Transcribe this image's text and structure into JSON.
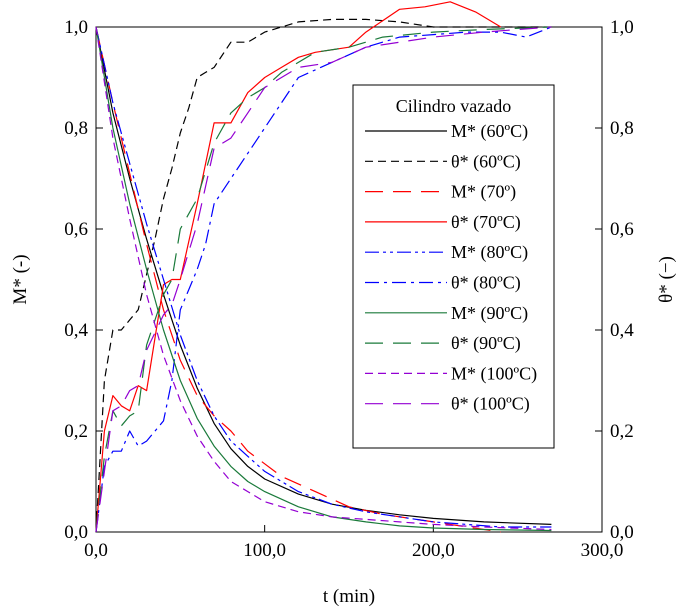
{
  "chart_data": {
    "type": "line",
    "xlabel": "t (min)",
    "ylabel": "M* (-)",
    "y2label": "θ* (−)",
    "xlim": [
      0,
      300
    ],
    "ylim": [
      0,
      1
    ],
    "xticks": [
      0,
      100,
      200,
      300
    ],
    "xtick_labels": [
      "0,0",
      "100,0",
      "200,0",
      "300,0"
    ],
    "yticks": [
      0,
      0.2,
      0.4,
      0.6,
      0.8,
      1.0
    ],
    "ytick_labels": [
      "0,0",
      "0,2",
      "0,4",
      "0,6",
      "0,8",
      "1,0"
    ],
    "grid": false,
    "legend": {
      "title": "Cilindro vazado",
      "position": "center-right"
    },
    "series": [
      {
        "name": "M* (60ºC)",
        "color": "#000000",
        "dash": "solid",
        "x": [
          0,
          10,
          20,
          30,
          40,
          50,
          60,
          70,
          80,
          90,
          100,
          120,
          140,
          160,
          180,
          200,
          230,
          270
        ],
        "y": [
          1.0,
          0.83,
          0.7,
          0.58,
          0.47,
          0.37,
          0.285,
          0.215,
          0.165,
          0.13,
          0.105,
          0.075,
          0.055,
          0.043,
          0.034,
          0.027,
          0.02,
          0.015
        ]
      },
      {
        "name": "θ* (60ºC)",
        "color": "#000000",
        "dash": "dash",
        "x": [
          0,
          5,
          10,
          15,
          20,
          25,
          30,
          35,
          40,
          45,
          50,
          55,
          60,
          65,
          70,
          80,
          90,
          100,
          110,
          120,
          140,
          160,
          180,
          200,
          220,
          240,
          270
        ],
        "y": [
          0.0,
          0.3,
          0.4,
          0.4,
          0.42,
          0.44,
          0.51,
          0.58,
          0.66,
          0.72,
          0.79,
          0.84,
          0.9,
          0.91,
          0.92,
          0.97,
          0.97,
          0.99,
          1.0,
          1.01,
          1.015,
          1.015,
          1.01,
          1.0,
          1.0,
          1.0,
          1.0
        ]
      },
      {
        "name": "M* (70º)",
        "color": "#ff0000",
        "dash": "longdash",
        "x": [
          0,
          10,
          20,
          30,
          40,
          50,
          60,
          70,
          80,
          90,
          110,
          130,
          150,
          170,
          200,
          240
        ],
        "y": [
          1.0,
          0.85,
          0.71,
          0.57,
          0.44,
          0.34,
          0.27,
          0.23,
          0.2,
          0.16,
          0.11,
          0.08,
          0.05,
          0.035,
          0.02,
          0.0
        ]
      },
      {
        "name": "θ* (70ºC)",
        "color": "#ff0000",
        "dash": "solid",
        "x": [
          0,
          5,
          10,
          15,
          20,
          25,
          30,
          40,
          45,
          50,
          60,
          70,
          75,
          80,
          90,
          100,
          110,
          120,
          130,
          150,
          160,
          180,
          195,
          210,
          225,
          240
        ],
        "y": [
          0.0,
          0.2,
          0.27,
          0.25,
          0.24,
          0.29,
          0.28,
          0.49,
          0.5,
          0.5,
          0.65,
          0.81,
          0.81,
          0.81,
          0.87,
          0.9,
          0.92,
          0.94,
          0.95,
          0.96,
          0.99,
          1.035,
          1.04,
          1.05,
          1.03,
          1.0
        ]
      },
      {
        "name": "M* (80ºC)",
        "color": "#0000ff",
        "dash": "dashdotdot",
        "x": [
          0,
          10,
          20,
          30,
          40,
          50,
          60,
          70,
          80,
          90,
          100,
          120,
          140,
          160,
          180,
          200,
          240,
          270
        ],
        "y": [
          1.0,
          0.85,
          0.73,
          0.61,
          0.5,
          0.39,
          0.3,
          0.23,
          0.18,
          0.15,
          0.12,
          0.08,
          0.055,
          0.04,
          0.03,
          0.02,
          0.01,
          0.01
        ]
      },
      {
        "name": "θ* (80ºC)",
        "color": "#0000ff",
        "dash": "dashdot",
        "x": [
          0,
          5,
          10,
          15,
          20,
          25,
          30,
          40,
          45,
          50,
          55,
          60,
          65,
          70,
          80,
          90,
          100,
          120,
          140,
          160,
          180,
          200,
          220,
          240,
          255,
          270
        ],
        "y": [
          0.0,
          0.13,
          0.16,
          0.16,
          0.2,
          0.17,
          0.18,
          0.22,
          0.3,
          0.44,
          0.48,
          0.52,
          0.57,
          0.65,
          0.7,
          0.75,
          0.8,
          0.9,
          0.93,
          0.96,
          0.98,
          0.985,
          0.99,
          0.99,
          0.98,
          1.0
        ]
      },
      {
        "name": "M* (90ºC)",
        "color": "#1a7a3a",
        "dash": "solid",
        "x": [
          0,
          10,
          20,
          30,
          40,
          50,
          60,
          70,
          80,
          90,
          100,
          120,
          140,
          160,
          180,
          200,
          230,
          270
        ],
        "y": [
          1.0,
          0.8,
          0.65,
          0.52,
          0.4,
          0.3,
          0.225,
          0.17,
          0.13,
          0.1,
          0.08,
          0.05,
          0.03,
          0.02,
          0.012,
          0.008,
          0.005,
          0.003
        ]
      },
      {
        "name": "θ* (90ºC)",
        "color": "#1a7a3a",
        "dash": "longdash",
        "x": [
          0,
          5,
          10,
          15,
          20,
          25,
          30,
          40,
          45,
          50,
          60,
          70,
          80,
          90,
          100,
          110,
          130,
          150,
          170,
          200,
          230,
          270
        ],
        "y": [
          0.0,
          0.15,
          0.24,
          0.21,
          0.23,
          0.24,
          0.37,
          0.47,
          0.5,
          0.6,
          0.66,
          0.77,
          0.83,
          0.86,
          0.88,
          0.91,
          0.95,
          0.96,
          0.98,
          0.99,
          0.995,
          1.0
        ]
      },
      {
        "name": "M* (100ºC)",
        "color": "#9400d3",
        "dash": "dash",
        "x": [
          0,
          10,
          20,
          30,
          40,
          50,
          60,
          70,
          80,
          90,
          100,
          120,
          140,
          160,
          180,
          200,
          230,
          270
        ],
        "y": [
          1.0,
          0.78,
          0.62,
          0.47,
          0.35,
          0.26,
          0.19,
          0.14,
          0.1,
          0.08,
          0.06,
          0.04,
          0.03,
          0.025,
          0.02,
          0.015,
          0.01,
          0.005
        ]
      },
      {
        "name": "θ* (100ºC)",
        "color": "#9400d3",
        "dash": "longdash",
        "x": [
          0,
          5,
          10,
          15,
          20,
          25,
          30,
          40,
          45,
          50,
          60,
          70,
          80,
          90,
          100,
          120,
          140,
          160,
          180,
          200,
          230,
          270
        ],
        "y": [
          0.0,
          0.12,
          0.24,
          0.25,
          0.28,
          0.29,
          0.36,
          0.43,
          0.45,
          0.5,
          0.61,
          0.76,
          0.78,
          0.83,
          0.88,
          0.92,
          0.93,
          0.96,
          0.97,
          0.98,
          0.99,
          1.0
        ]
      }
    ]
  }
}
